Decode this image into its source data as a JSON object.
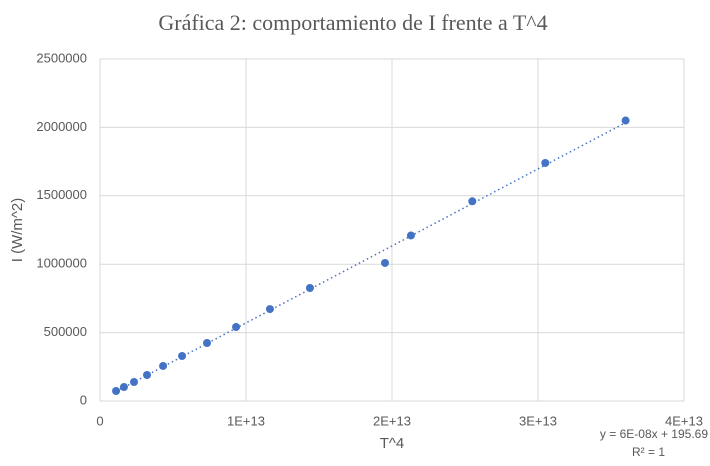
{
  "chart_data": {
    "type": "scatter",
    "title": "Gráfica 2: comportamiento de I frente a T^4",
    "x_label": "T^4",
    "y_label": "I (W/m^2)",
    "x": [
      1100000000000.0,
      1640000000000.0,
      2330000000000.0,
      3220000000000.0,
      4320000000000.0,
      5620000000000.0,
      7330000000000.0,
      9320000000000.0,
      11640000000000.0,
      14380000000000.0,
      19520000000000.0,
      21300000000000.0,
      25500000000000.0,
      30500000000000.0,
      36000000000000.0
    ],
    "values": [
      73000,
      102000,
      139000,
      190000,
      256000,
      329000,
      424000,
      541000,
      672000,
      826000,
      1009000,
      1210000,
      1460000,
      1740000,
      2050000
    ],
    "color": "#4472c4",
    "xlim": [
      0,
      40000000000000.0
    ],
    "xticks": [
      0,
      {
        "value": 10000000000000.0,
        "label": "1E+13"
      },
      {
        "value": 20000000000000.0,
        "label": "2E+13"
      },
      {
        "value": 30000000000000.0,
        "label": "3E+13"
      },
      {
        "value": 40000000000000.0,
        "label": "4E+13"
      }
    ],
    "ylim": [
      0,
      2500000
    ],
    "yticks": [
      0,
      500000,
      1000000,
      1500000,
      2000000,
      2500000
    ],
    "grid": true,
    "trendline": {
      "type": "linear",
      "equation": "y = 6E-08x + 195.69",
      "r_squared": "R² = 1"
    }
  }
}
